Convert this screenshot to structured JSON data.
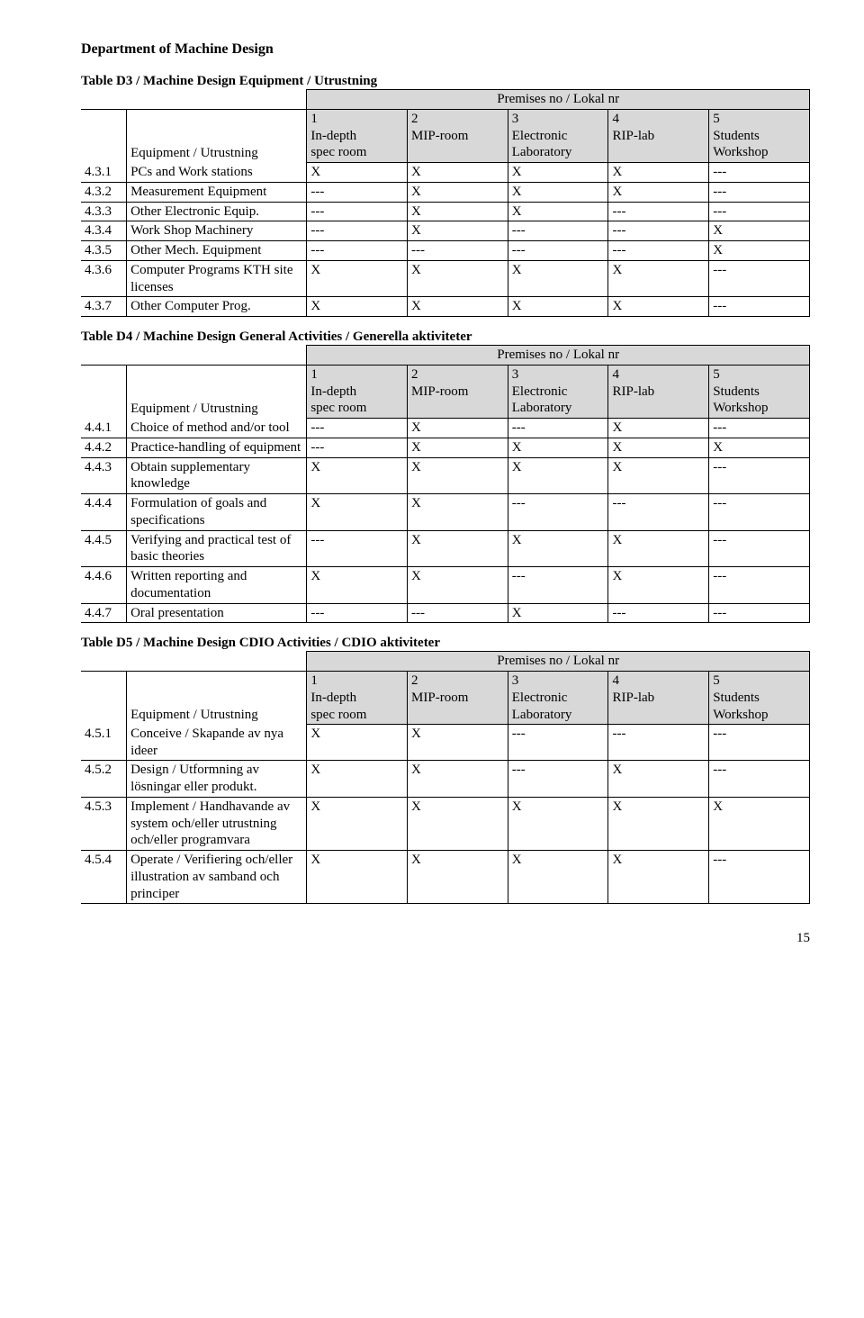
{
  "department_title": "Department of Machine Design",
  "premises_label": "Premises no / Lokal nr",
  "equip_label": "Equipment / Utrustning",
  "columns": [
    {
      "num": "1",
      "l1": "In-depth",
      "l2": "spec room"
    },
    {
      "num": "2",
      "l1": "MIP-room",
      "l2": ""
    },
    {
      "num": "3",
      "l1": "Electronic",
      "l2": "Laboratory"
    },
    {
      "num": "4",
      "l1": "RIP-lab",
      "l2": ""
    },
    {
      "num": "5",
      "l1": "Students",
      "l2": "Workshop"
    }
  ],
  "tables": [
    {
      "title": "Table D3 / Machine Design  Equipment / Utrustning",
      "rows": [
        {
          "idx": "4.3.1",
          "name": "PCs and Work stations",
          "v": [
            "X",
            "X",
            "X",
            "X",
            "---"
          ]
        },
        {
          "idx": "4.3.2",
          "name": "Measurement Equipment",
          "v": [
            "---",
            "X",
            "X",
            "X",
            "---"
          ]
        },
        {
          "idx": "4.3.3",
          "name": "Other Electronic Equip.",
          "v": [
            "---",
            "X",
            "X",
            "---",
            "---"
          ]
        },
        {
          "idx": "4.3.4",
          "name": "Work Shop Machinery",
          "v": [
            "---",
            "X",
            "---",
            "---",
            "X"
          ]
        },
        {
          "idx": "4.3.5",
          "name": "Other Mech. Equipment",
          "v": [
            "---",
            "---",
            "---",
            "---",
            "X"
          ]
        },
        {
          "idx": "4.3.6",
          "name": "Computer Programs KTH site licenses",
          "v": [
            "X",
            "X",
            "X",
            "X",
            "---"
          ]
        },
        {
          "idx": "4.3.7",
          "name": "Other Computer Prog.",
          "v": [
            "X",
            "X",
            "X",
            "X",
            "---"
          ]
        }
      ]
    },
    {
      "title": "Table D4 / Machine Design  General Activities / Generella aktiviteter",
      "rows": [
        {
          "idx": "4.4.1",
          "name": "Choice of method and/or tool",
          "v": [
            "---",
            "X",
            "---",
            "X",
            "---"
          ]
        },
        {
          "idx": "4.4.2",
          "name": "Practice-handling of equipment",
          "v": [
            "---",
            "X",
            "X",
            "X",
            "X"
          ]
        },
        {
          "idx": "4.4.3",
          "name": "Obtain supplementary knowledge",
          "v": [
            "X",
            "X",
            "X",
            "X",
            "---"
          ]
        },
        {
          "idx": "4.4.4",
          "name": "Formulation of goals and specifications",
          "v": [
            "X",
            "X",
            "---",
            "---",
            "---"
          ]
        },
        {
          "idx": "4.4.5",
          "name": "Verifying and practical test of basic theories",
          "v": [
            "---",
            "X",
            "X",
            "X",
            "---"
          ]
        },
        {
          "idx": "4.4.6",
          "name": "Written reporting and documentation",
          "v": [
            "X",
            "X",
            "---",
            "X",
            "---"
          ]
        },
        {
          "idx": "4.4.7",
          "name": "Oral presentation",
          "v": [
            "---",
            "---",
            "X",
            "---",
            "---"
          ]
        }
      ]
    },
    {
      "title": "Table D5 / Machine Design  CDIO Activities / CDIO aktiviteter",
      "rows": [
        {
          "idx": "4.5.1",
          "name": "Conceive / Skapande av nya ideer",
          "v": [
            "X",
            "X",
            "---",
            "---",
            "---"
          ]
        },
        {
          "idx": "4.5.2",
          "name": "Design / Utformning av lösningar eller produkt.",
          "v": [
            "X",
            "X",
            "---",
            "X",
            "---"
          ]
        },
        {
          "idx": "4.5.3",
          "name": "Implement / Handhavande av system och/eller utrustning och/eller programvara",
          "v": [
            "X",
            "X",
            "X",
            "X",
            "X"
          ]
        },
        {
          "idx": "4.5.4",
          "name": "Operate / Verifiering och/eller illustration av samband och principer",
          "v": [
            "X",
            "X",
            "X",
            "X",
            "---"
          ]
        }
      ]
    }
  ],
  "page_number": "15"
}
